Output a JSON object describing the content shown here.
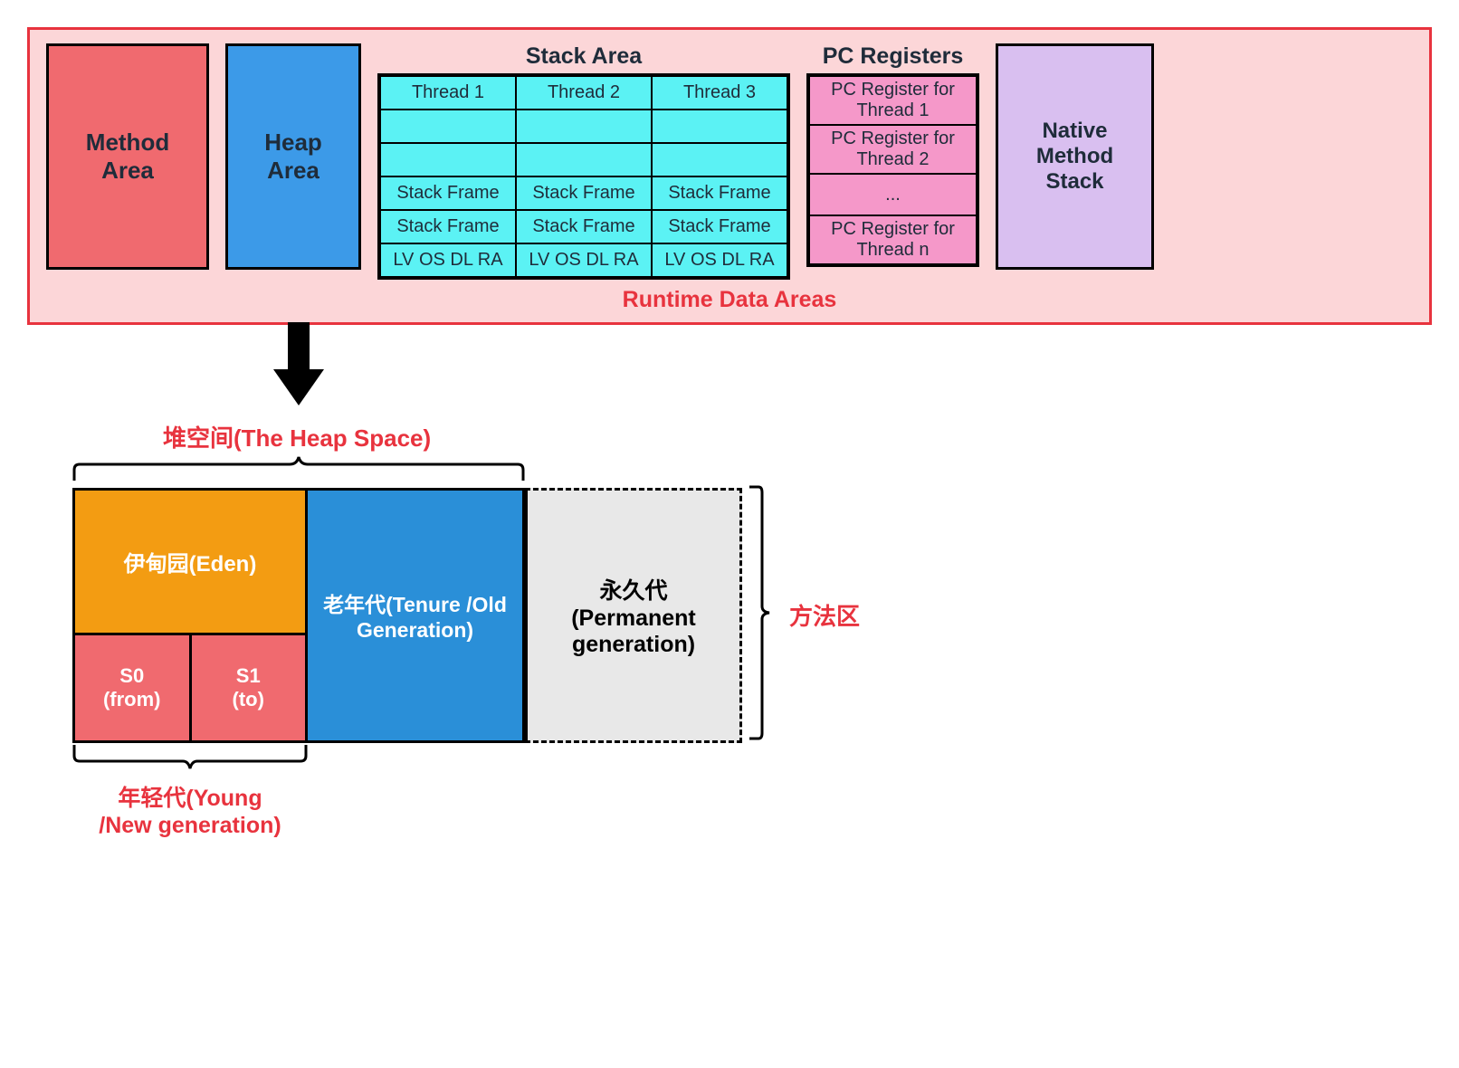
{
  "runtime": {
    "method_area": "Method\nArea",
    "heap_area": "Heap\nArea",
    "stack_title": "Stack Area",
    "stack_cols": [
      [
        "Thread 1",
        "",
        "",
        "Stack Frame",
        "Stack Frame",
        "LV OS DL RA"
      ],
      [
        "Thread 2",
        "",
        "",
        "Stack Frame",
        "Stack Frame",
        "LV OS DL RA"
      ],
      [
        "Thread 3",
        "",
        "",
        "Stack Frame",
        "Stack Frame",
        "LV OS DL RA"
      ]
    ],
    "pc_title": "PC Registers",
    "pc_rows": [
      "PC Register for Thread 1",
      "PC Register for Thread 2",
      "...",
      "PC Register for Thread n"
    ],
    "native_stack": "Native\nMethod\nStack",
    "caption": "Runtime Data Areas"
  },
  "heap": {
    "space_label": "堆空间(The Heap Space)",
    "eden": "伊甸园(Eden)",
    "s0": "S0\n(from)",
    "s1": "S1\n(to)",
    "old": "老年代(Tenure /Old Generation)",
    "perm": "永久代\n(Permanent generation)",
    "method_zone": "方法区",
    "young_label": "年轻代(Young\n/New generation)"
  },
  "colors": {
    "runtime_border": "#e8333e",
    "runtime_bg": "#fcd6d8",
    "method_area_bg": "#f06a6f",
    "heap_area_bg": "#3c9ae8",
    "stack_cell_bg": "#5bf2f4",
    "pc_cell_bg": "#f598c9",
    "native_bg": "#d9bff0",
    "eden_bg": "#f39c12",
    "survivor_bg": "#f06a6f",
    "old_bg": "#2a8fd8",
    "perm_bg": "#e8e8e8",
    "accent_red": "#e8333e"
  }
}
